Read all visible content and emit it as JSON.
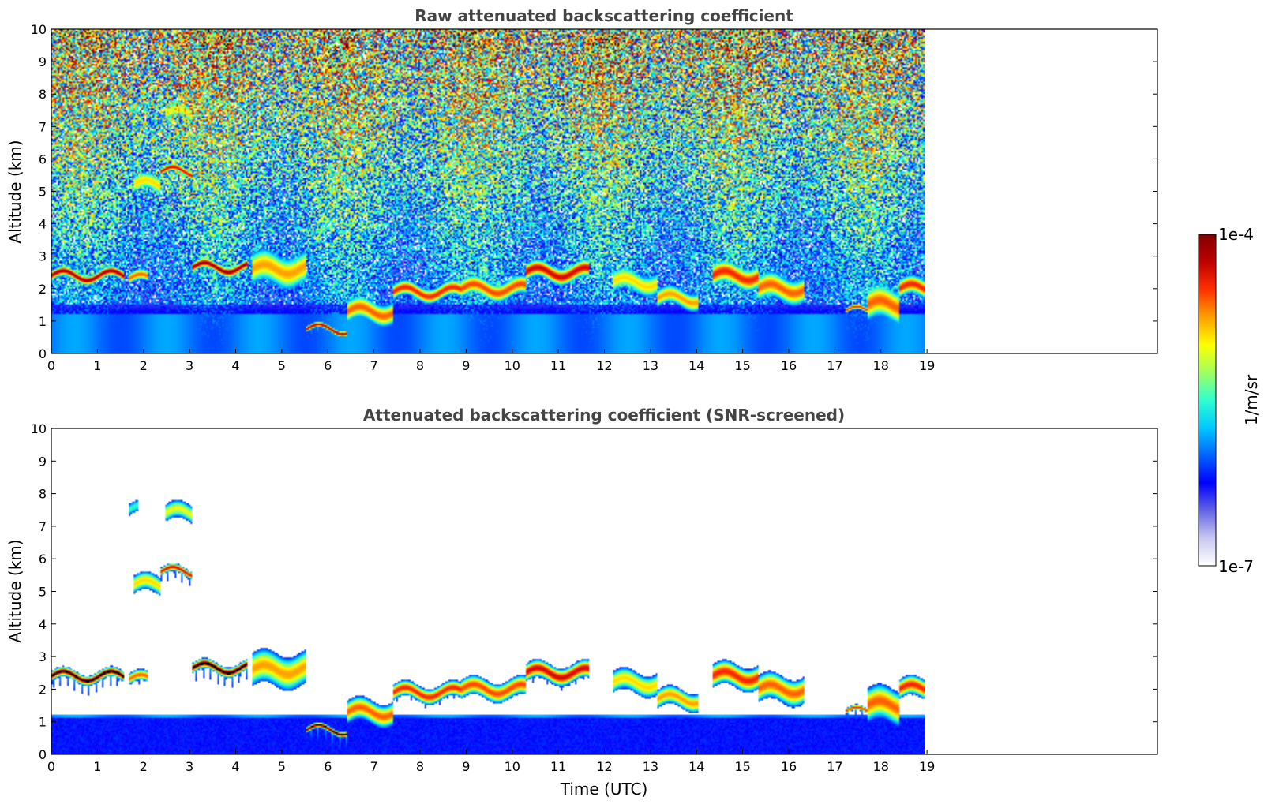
{
  "chart_data": [
    {
      "type": "heatmap",
      "title": "Raw attenuated backscattering coefficient",
      "xlabel": "",
      "ylabel": "Altitude (km)",
      "xlim": [
        0,
        24
      ],
      "ylim": [
        0,
        10
      ],
      "x_ticks": [
        0,
        1,
        2,
        3,
        4,
        5,
        6,
        7,
        8,
        9,
        10,
        11,
        12,
        13,
        14,
        15,
        16,
        17,
        18,
        19
      ],
      "y_ticks": [
        0,
        1,
        2,
        3,
        4,
        5,
        6,
        7,
        8,
        9,
        10
      ],
      "data_end_time": 19.15,
      "screened": false,
      "layers": [
        {
          "type": "cloud",
          "t0": 0.0,
          "t1": 1.6,
          "z": 2.4,
          "thick": 0.25,
          "intensity": 0.95
        },
        {
          "type": "cloud",
          "t0": 1.7,
          "t1": 2.1,
          "z": 2.3,
          "thick": 0.3,
          "intensity": 0.8
        },
        {
          "type": "cloud",
          "t0": 3.1,
          "t1": 4.3,
          "z": 2.65,
          "thick": 0.25,
          "intensity": 0.97
        },
        {
          "type": "cloud",
          "t0": 4.4,
          "t1": 5.6,
          "z": 2.6,
          "thick": 0.9,
          "intensity": 0.75
        },
        {
          "type": "cloud",
          "t0": 5.6,
          "t1": 6.5,
          "z": 0.75,
          "thick": 0.15,
          "intensity": 0.95
        },
        {
          "type": "cloud",
          "t0": 6.5,
          "t1": 7.5,
          "z": 1.3,
          "thick": 0.6,
          "intensity": 0.8
        },
        {
          "type": "cloud",
          "t0": 7.5,
          "t1": 9.0,
          "z": 1.9,
          "thick": 0.4,
          "intensity": 0.85
        },
        {
          "type": "cloud",
          "t0": 9.0,
          "t1": 10.4,
          "z": 2.0,
          "thick": 0.5,
          "intensity": 0.82
        },
        {
          "type": "cloud",
          "t0": 10.4,
          "t1": 11.8,
          "z": 2.5,
          "thick": 0.45,
          "intensity": 0.9
        },
        {
          "type": "cloud",
          "t0": 12.3,
          "t1": 13.3,
          "z": 2.2,
          "thick": 0.6,
          "intensity": 0.7
        },
        {
          "type": "cloud",
          "t0": 13.3,
          "t1": 14.2,
          "z": 1.7,
          "thick": 0.5,
          "intensity": 0.75
        },
        {
          "type": "cloud",
          "t0": 14.5,
          "t1": 15.5,
          "z": 2.4,
          "thick": 0.6,
          "intensity": 0.85
        },
        {
          "type": "cloud",
          "t0": 15.5,
          "t1": 16.5,
          "z": 2.0,
          "thick": 0.7,
          "intensity": 0.8
        },
        {
          "type": "cloud",
          "t0": 17.4,
          "t1": 17.9,
          "z": 1.3,
          "thick": 0.15,
          "intensity": 0.85
        },
        {
          "type": "cloud",
          "t0": 17.9,
          "t1": 18.6,
          "z": 1.5,
          "thick": 0.9,
          "intensity": 0.8
        },
        {
          "type": "cloud",
          "t0": 18.6,
          "t1": 19.15,
          "z": 2.0,
          "thick": 0.5,
          "intensity": 0.85
        },
        {
          "type": "cloud",
          "t0": 1.8,
          "t1": 2.4,
          "z": 5.2,
          "thick": 0.5,
          "intensity": 0.7
        },
        {
          "type": "cloud",
          "t0": 2.4,
          "t1": 3.1,
          "z": 5.6,
          "thick": 0.2,
          "intensity": 0.9
        },
        {
          "type": "cloud",
          "t0": 2.5,
          "t1": 3.1,
          "z": 7.4,
          "thick": 0.5,
          "intensity": 0.65
        },
        {
          "type": "cloud",
          "t0": 1.7,
          "t1": 1.9,
          "z": 7.5,
          "thick": 0.4,
          "intensity": 0.5
        }
      ]
    },
    {
      "type": "heatmap",
      "title": "Attenuated backscattering coefficient (SNR-screened)",
      "xlabel": "Time (UTC)",
      "ylabel": "Altitude (km)",
      "xlim": [
        0,
        24
      ],
      "ylim": [
        0,
        10
      ],
      "x_ticks": [
        0,
        1,
        2,
        3,
        4,
        5,
        6,
        7,
        8,
        9,
        10,
        11,
        12,
        13,
        14,
        15,
        16,
        17,
        18,
        19
      ],
      "y_ticks": [
        0,
        1,
        2,
        3,
        4,
        5,
        6,
        7,
        8,
        9,
        10
      ],
      "data_end_time": 19.15,
      "screened": true
    }
  ],
  "colorbar": {
    "label": "1/m/sr",
    "min_label": "1e-7",
    "max_label": "1e-4",
    "scale": "log",
    "colormap": [
      "#ffffff",
      "#c8c8f0",
      "#6464e6",
      "#0000ff",
      "#0064ff",
      "#00c8ff",
      "#30ffd0",
      "#a0ff60",
      "#ffff00",
      "#ffa000",
      "#ff3000",
      "#c00000",
      "#800000"
    ]
  }
}
